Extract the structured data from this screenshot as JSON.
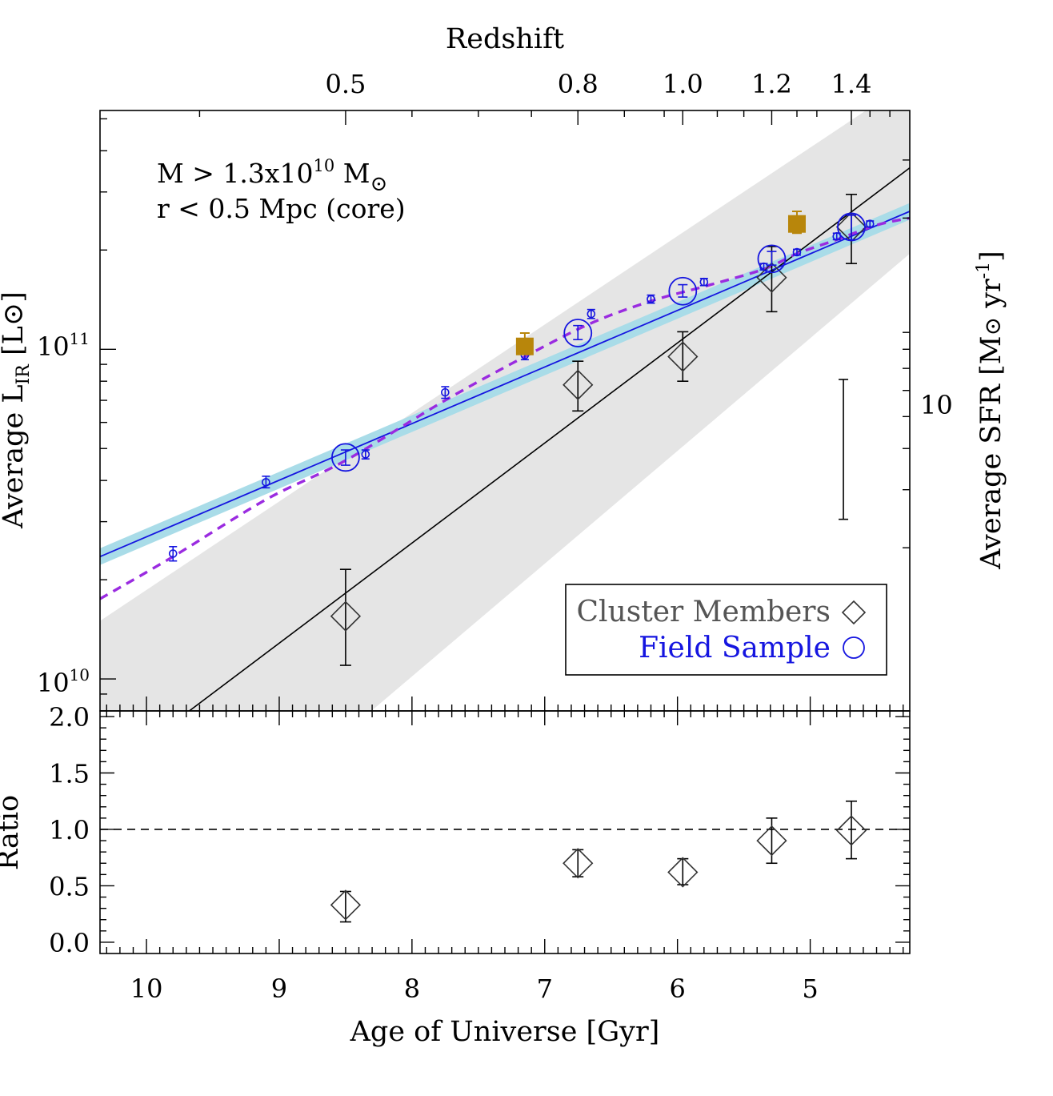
{
  "chart_data": [
    {
      "type": "scatter",
      "panel": "top",
      "title": "",
      "top_axis_label": "Redshift",
      "top_ticks": [
        "0.5",
        "0.8",
        "1.0",
        "1.2",
        "1.4"
      ],
      "top_tick_ages": [
        8.5,
        6.75,
        5.96,
        5.29,
        4.69
      ],
      "ylabel": "Average L_IR [L_⊙]",
      "ylabel_shown": "Average L",
      "ylabel_sub": "IR",
      "ylabel_unit": "[L⊙]",
      "y2label": "Average SFR [M⊙ yr⁻¹]",
      "y2label_main": "Average SFR [M",
      "y2label_unit": " yr",
      "y2label_exp": "-1",
      "y2label_close": "]",
      "y2_ticks": [
        "10"
      ],
      "y_ticks": [
        {
          "base": "10",
          "exp": "11",
          "value": 100000000000.0
        },
        {
          "base": "10",
          "exp": "10",
          "value": 10000000000.0
        }
      ],
      "ylim": [
        8000000000.0,
        530000000000.0
      ],
      "xlim": [
        10.35,
        4.25
      ],
      "annotation": {
        "line1_prefix": "M > 1.3x10",
        "line1_exp": "10",
        "line1_suffix": " M",
        "line2": "r < 0.5 Mpc (core)"
      },
      "legend": {
        "position": "bottom-right",
        "cluster_label": "Cluster Members",
        "field_label": "Field Sample"
      },
      "cluster_members": [
        {
          "age": 8.5,
          "y": 15500000000.0,
          "lo": 11000000000.0,
          "hi": 21500000000.0
        },
        {
          "age": 6.75,
          "y": 78000000000.0,
          "lo": 65000000000.0,
          "hi": 92000000000.0
        },
        {
          "age": 5.96,
          "y": 95000000000.0,
          "lo": 80000000000.0,
          "hi": 113000000000.0
        },
        {
          "age": 5.29,
          "y": 165000000000.0,
          "lo": 130000000000.0,
          "hi": 205000000000.0
        },
        {
          "age": 4.69,
          "y": 235000000000.0,
          "lo": 182000000000.0,
          "hi": 295000000000.0
        }
      ],
      "field_sample_binned": [
        {
          "age": 8.5,
          "y": 47000000000.0,
          "lo": 44500000000.0,
          "hi": 49500000000.0
        },
        {
          "age": 6.75,
          "y": 112000000000.0,
          "lo": 107000000000.0,
          "hi": 118000000000.0
        },
        {
          "age": 5.96,
          "y": 150000000000.0,
          "lo": 144000000000.0,
          "hi": 157000000000.0
        },
        {
          "age": 5.29,
          "y": 188000000000.0,
          "lo": 180000000000.0,
          "hi": 198000000000.0
        },
        {
          "age": 4.69,
          "y": 235000000000.0,
          "lo": 215000000000.0,
          "hi": 255000000000.0
        }
      ],
      "field_sample_small": [
        {
          "age": 9.8,
          "y": 24000000000.0,
          "lo": 22800000000.0,
          "hi": 25200000000.0
        },
        {
          "age": 9.1,
          "y": 39500000000.0,
          "lo": 38000000000.0,
          "hi": 41200000000.0
        },
        {
          "age": 8.35,
          "y": 48000000000.0,
          "lo": 46500000000.0,
          "hi": 49500000000.0
        },
        {
          "age": 7.75,
          "y": 74000000000.0,
          "lo": 71000000000.0,
          "hi": 77000000000.0
        },
        {
          "age": 7.15,
          "y": 96000000000.0,
          "lo": 93000000000.0,
          "hi": 99000000000.0
        },
        {
          "age": 6.65,
          "y": 128000000000.0,
          "lo": 124000000000.0,
          "hi": 132000000000.0
        },
        {
          "age": 6.2,
          "y": 142000000000.0,
          "lo": 138000000000.0,
          "hi": 146000000000.0
        },
        {
          "age": 5.8,
          "y": 160000000000.0,
          "lo": 156000000000.0,
          "hi": 164000000000.0
        },
        {
          "age": 5.35,
          "y": 178000000000.0,
          "lo": 174000000000.0,
          "hi": 182000000000.0
        },
        {
          "age": 5.1,
          "y": 197000000000.0,
          "lo": 193000000000.0,
          "hi": 201000000000.0
        },
        {
          "age": 4.8,
          "y": 220000000000.0,
          "lo": 215000000000.0,
          "hi": 225000000000.0
        },
        {
          "age": 4.55,
          "y": 240000000000.0,
          "lo": 235000000000.0,
          "hi": 245000000000.0
        }
      ],
      "gold_squares": [
        {
          "age": 7.15,
          "y": 102000000000.0,
          "lo": 97000000000.0,
          "hi": 112000000000.0
        },
        {
          "age": 5.1,
          "y": 240000000000.0,
          "lo": 225000000000.0,
          "hi": 262000000000.0
        }
      ],
      "blue_fit_line": [
        {
          "age": 10.35,
          "y": 23500000000.0
        },
        {
          "age": 4.25,
          "y": 262000000000.0
        }
      ],
      "blue_band_halfwidth_factor": 1.06,
      "black_fit_line": [
        {
          "age": 10.35,
          "y": 5000000000.0
        },
        {
          "age": 4.25,
          "y": 355000000000.0
        }
      ],
      "gray_band": {
        "upper": [
          {
            "age": 10.35,
            "y": 15000000000.0
          },
          {
            "age": 4.25,
            "y": 650000000000.0
          }
        ],
        "lower": [
          {
            "age": 10.35,
            "y": 1600000000.0
          },
          {
            "age": 4.25,
            "y": 195000000000.0
          }
        ]
      },
      "purple_dashed_curve": [
        {
          "age": 10.35,
          "y": 17500000000.0
        },
        {
          "age": 9.8,
          "y": 23500000000.0
        },
        {
          "age": 9.1,
          "y": 35000000000.0
        },
        {
          "age": 8.5,
          "y": 46000000000.0
        },
        {
          "age": 7.75,
          "y": 70000000000.0
        },
        {
          "age": 7.15,
          "y": 95000000000.0
        },
        {
          "age": 6.65,
          "y": 120000000000.0
        },
        {
          "age": 6.2,
          "y": 140000000000.0
        },
        {
          "age": 5.8,
          "y": 155000000000.0
        },
        {
          "age": 5.35,
          "y": 175000000000.0
        },
        {
          "age": 5.1,
          "y": 195000000000.0
        },
        {
          "age": 4.8,
          "y": 215000000000.0
        },
        {
          "age": 4.5,
          "y": 238000000000.0
        },
        {
          "age": 4.25,
          "y": 250000000000.0
        }
      ],
      "representative_errorbar": {
        "age": 4.75,
        "lo": 30500000000.0,
        "hi": 81000000000.0
      }
    },
    {
      "type": "scatter",
      "panel": "bottom",
      "xlabel": "Age of Universe [Gyr]",
      "ylabel": "Ratio",
      "x_ticks": [
        "10",
        "9",
        "8",
        "7",
        "6",
        "5"
      ],
      "x_tick_values": [
        10,
        9,
        8,
        7,
        6,
        5
      ],
      "y_ticks": [
        "2.0",
        "1.5",
        "1.0",
        "0.5",
        "0.0"
      ],
      "y_tick_values": [
        2.0,
        1.5,
        1.0,
        0.5,
        0.0
      ],
      "xlim": [
        10.35,
        4.25
      ],
      "ylim": [
        -0.1,
        2.05
      ],
      "reference_line": 1.0,
      "ratio_points": [
        {
          "age": 8.5,
          "y": 0.33,
          "lo": 0.18,
          "hi": 0.45
        },
        {
          "age": 6.75,
          "y": 0.7,
          "lo": 0.58,
          "hi": 0.82
        },
        {
          "age": 5.96,
          "y": 0.62,
          "lo": 0.51,
          "hi": 0.74
        },
        {
          "age": 5.29,
          "y": 0.9,
          "lo": 0.7,
          "hi": 1.1
        },
        {
          "age": 4.69,
          "y": 0.99,
          "lo": 0.74,
          "hi": 1.25
        }
      ]
    }
  ]
}
